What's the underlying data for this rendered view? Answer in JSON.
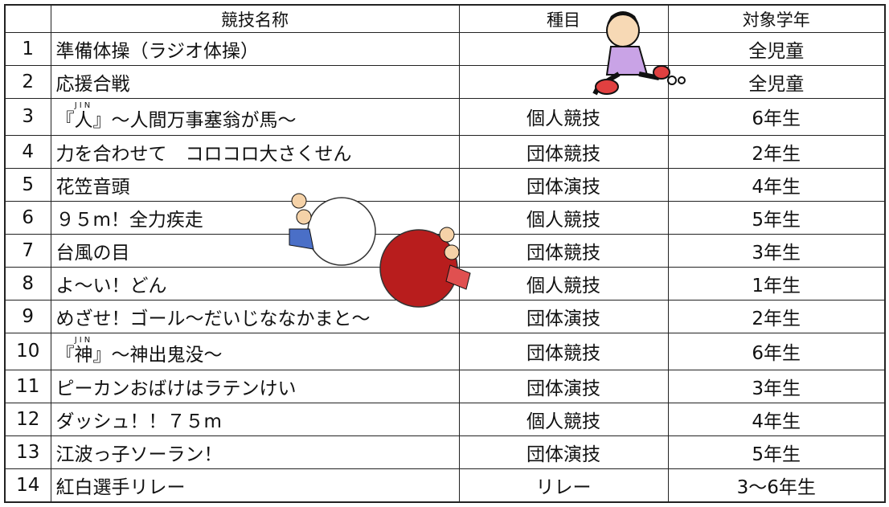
{
  "table": {
    "headers": [
      "競技名称",
      "種目",
      "対象学年"
    ],
    "rows": [
      {
        "no": "1",
        "name": "準備体操（ラジオ体操）",
        "type": null,
        "grade": "全児童"
      },
      {
        "no": "2",
        "name": "応援合戦",
        "type": null,
        "grade": "全児童"
      },
      {
        "no": "3",
        "name_pre": "『",
        "name_ruby_base": "人",
        "ruby": "JIN",
        "name": "』～人間万事塞翁が馬～",
        "type": "個人競技",
        "grade": "6年生"
      },
      {
        "no": "4",
        "name": "力を合わせて　コロコロ大さくせん",
        "type": "団体競技",
        "grade": "2年生"
      },
      {
        "no": "5",
        "name": "花笠音頭",
        "type": "団体演技",
        "grade": "4年生"
      },
      {
        "no": "6",
        "name": "９５m！全力疾走",
        "type": "個人競技",
        "grade": "5年生"
      },
      {
        "no": "7",
        "name": "台風の目",
        "type": "団体競技",
        "grade": "3年生"
      },
      {
        "no": "8",
        "name": "よ～い！どん",
        "type": "個人競技",
        "grade": "1年生"
      },
      {
        "no": "9",
        "name": "めざせ！ゴール～だいじななかまと～",
        "type": "団体演技",
        "grade": "2年生"
      },
      {
        "no": "10",
        "name_pre": "『",
        "name_ruby_base": "神",
        "ruby": "JIN",
        "name": "』～神出鬼没～",
        "type": "団体競技",
        "grade": "6年生"
      },
      {
        "no": "11",
        "name": "ピーカンおばけはラテンけい",
        "type": "団体演技",
        "grade": "3年生"
      },
      {
        "no": "12",
        "name": "ダッシュ！！７５m",
        "type": "個人競技",
        "grade": "4年生"
      },
      {
        "no": "13",
        "name": "江波っ子ソーラン！",
        "type": "団体演技",
        "grade": "5年生"
      },
      {
        "no": "14",
        "name": "紅白選手リレー",
        "type": "リレー",
        "grade": "3～6年生"
      }
    ]
  }
}
